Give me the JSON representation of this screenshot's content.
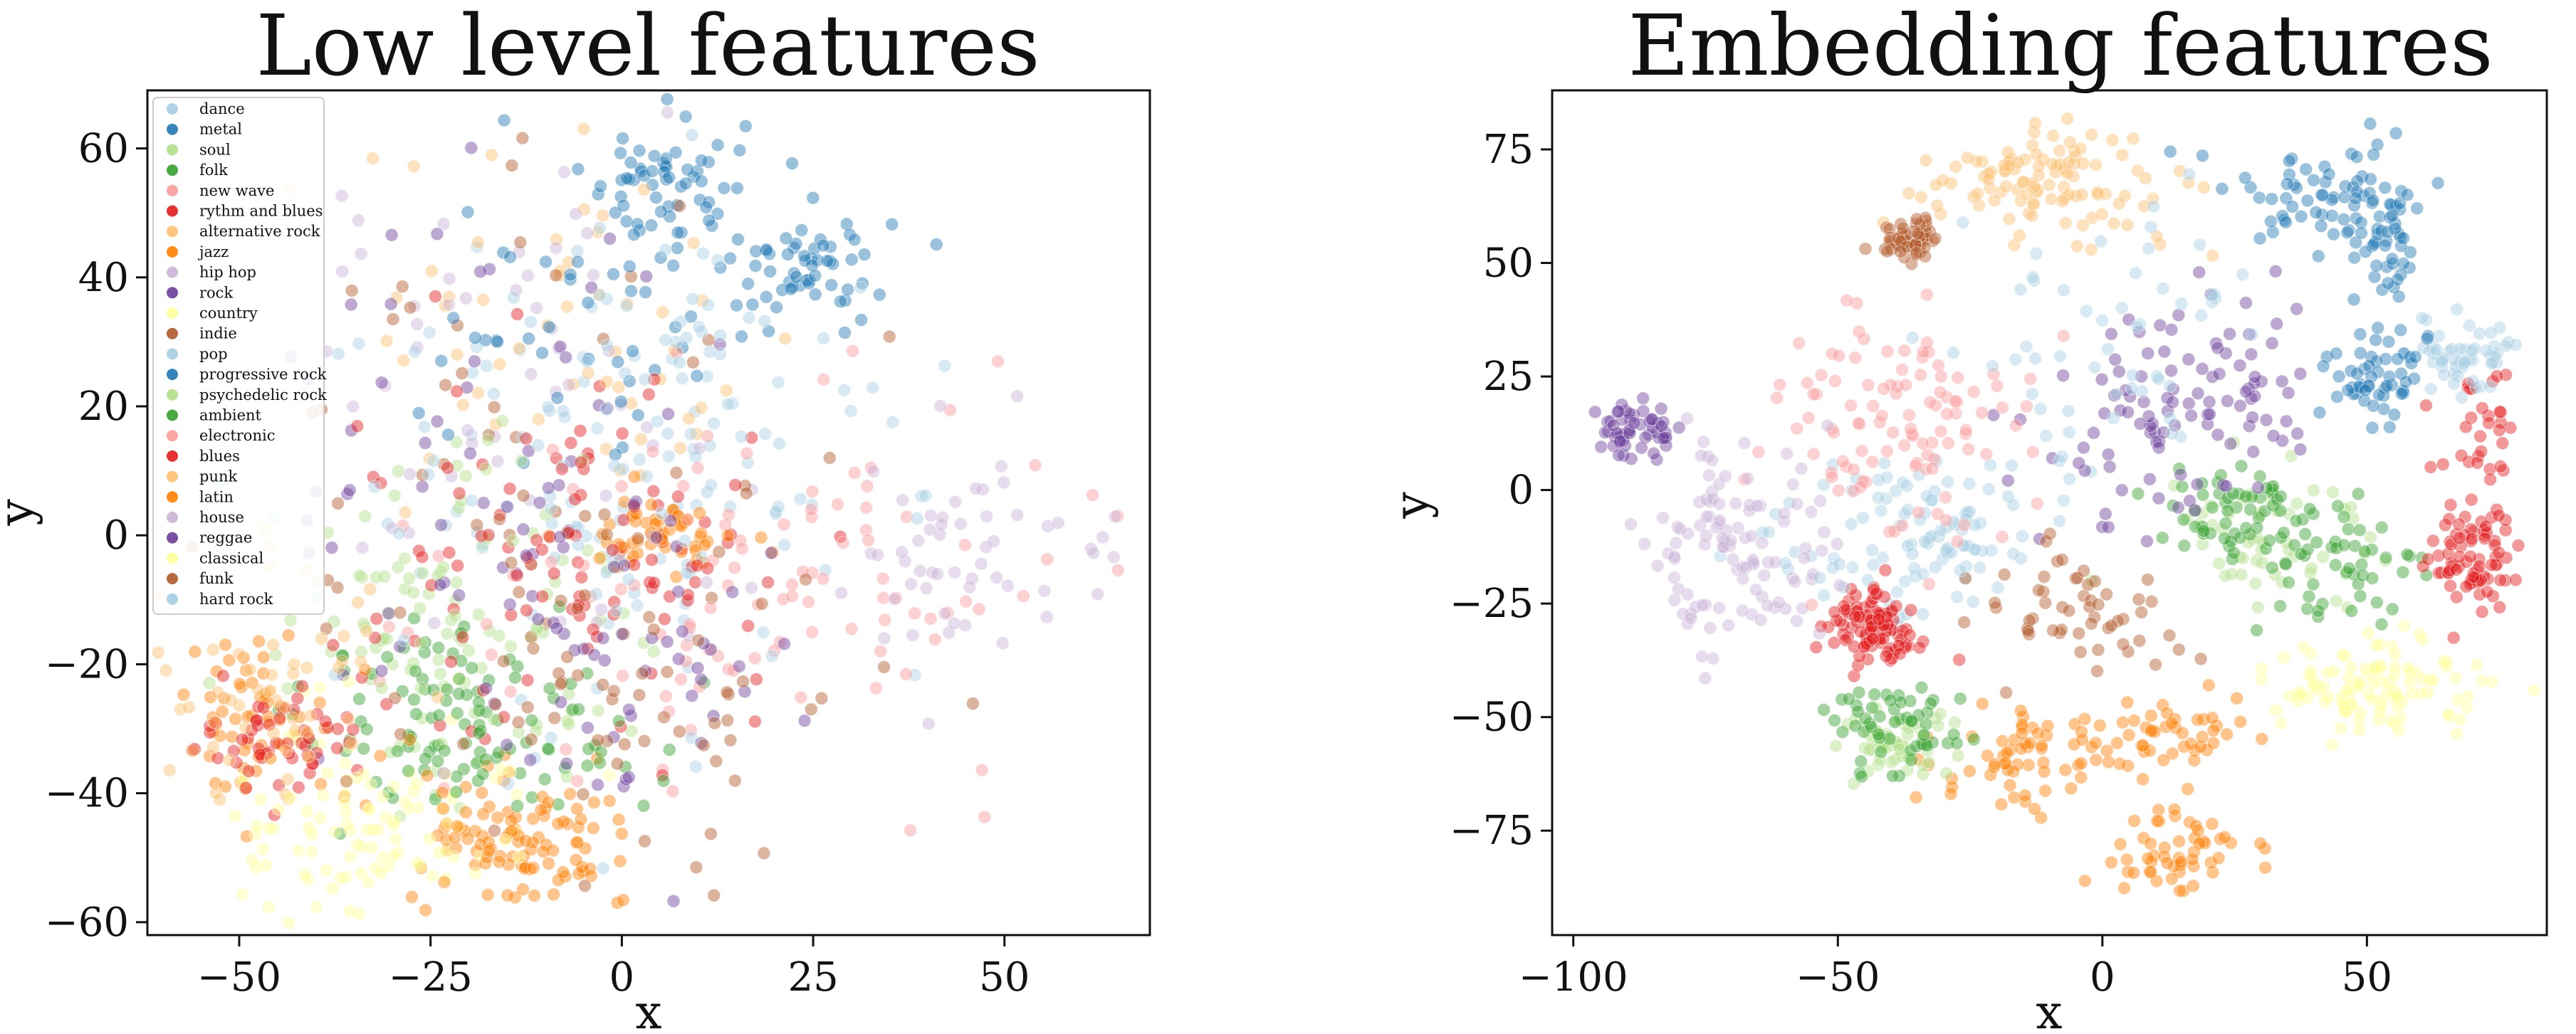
{
  "chart_data": [
    {
      "type": "scatter",
      "title": "Low level features",
      "xlabel": "x",
      "ylabel": "y",
      "xlim": [
        -62,
        69
      ],
      "ylim": [
        -62,
        69
      ],
      "xticks": [
        -50,
        -25,
        0,
        25,
        50
      ],
      "yticks": [
        -60,
        -40,
        -20,
        0,
        20,
        40,
        60
      ],
      "grid": false,
      "legend_position": "upper-left",
      "series": [
        {
          "name": "dance",
          "color": "#a6cee3",
          "clusters": [
            {
              "cx": -10,
              "cy": 15,
              "sx": 20,
              "sy": 20
            }
          ]
        },
        {
          "name": "metal",
          "color": "#1f78b4",
          "clusters": [
            {
              "cx": 6,
              "cy": 55,
              "sx": 5,
              "sy": 5
            },
            {
              "cx": 25,
              "cy": 42,
              "sx": 5,
              "sy": 4
            }
          ]
        },
        {
          "name": "soul",
          "color": "#b2df8a",
          "clusters": [
            {
              "cx": -20,
              "cy": -18,
              "sx": 12,
              "sy": 12
            }
          ]
        },
        {
          "name": "folk",
          "color": "#33a02c",
          "clusters": [
            {
              "cx": -25,
              "cy": -28,
              "sx": 8,
              "sy": 8
            }
          ]
        },
        {
          "name": "new wave",
          "color": "#fb9a99",
          "clusters": [
            {
              "cx": 20,
              "cy": -10,
              "sx": 20,
              "sy": 15
            }
          ]
        },
        {
          "name": "rythm and blues",
          "color": "#e31a1c",
          "clusters": [
            {
              "cx": -5,
              "cy": -5,
              "sx": 18,
              "sy": 15
            }
          ]
        },
        {
          "name": "alternative rock",
          "color": "#fdbf6f",
          "clusters": [
            {
              "cx": -5,
              "cy": 30,
              "sx": 15,
              "sy": 15
            }
          ]
        },
        {
          "name": "jazz",
          "color": "#ff7f00",
          "clusters": [
            {
              "cx": -15,
              "cy": -45,
              "sx": 9,
              "sy": 6
            },
            {
              "cx": 5,
              "cy": 0,
              "sx": 5,
              "sy": 3
            },
            {
              "cx": -48,
              "cy": -27,
              "sx": 5,
              "sy": 6
            }
          ]
        },
        {
          "name": "hip hop",
          "color": "#cab2d6",
          "clusters": [
            {
              "cx": -15,
              "cy": 20,
              "sx": 15,
              "sy": 18
            }
          ]
        },
        {
          "name": "rock",
          "color": "#6a3d9a",
          "clusters": [
            {
              "cx": -18,
              "cy": 15,
              "sx": 14,
              "sy": 20
            }
          ]
        },
        {
          "name": "country",
          "color": "#ffff99",
          "clusters": [
            {
              "cx": -30,
              "cy": -40,
              "sx": 10,
              "sy": 10
            }
          ]
        },
        {
          "name": "indie",
          "color": "#b15928",
          "clusters": [
            {
              "cx": -10,
              "cy": 10,
              "sx": 20,
              "sy": 20
            }
          ]
        },
        {
          "name": "pop",
          "color": "#a6cee3",
          "clusters": [
            {
              "cx": 0,
              "cy": 0,
              "sx": 25,
              "sy": 22
            }
          ]
        },
        {
          "name": "progressive rock",
          "color": "#1f78b4",
          "clusters": [
            {
              "cx": 0,
              "cy": 35,
              "sx": 12,
              "sy": 12
            }
          ]
        },
        {
          "name": "psychedelic rock",
          "color": "#b2df8a",
          "clusters": [
            {
              "cx": -25,
              "cy": -10,
              "sx": 10,
              "sy": 12
            }
          ]
        },
        {
          "name": "ambient",
          "color": "#33a02c",
          "clusters": [
            {
              "cx": -15,
              "cy": -30,
              "sx": 10,
              "sy": 8
            }
          ]
        },
        {
          "name": "electronic",
          "color": "#fb9a99",
          "clusters": [
            {
              "cx": 25,
              "cy": -5,
              "sx": 22,
              "sy": 15
            }
          ]
        },
        {
          "name": "blues",
          "color": "#e31a1c",
          "clusters": [
            {
              "cx": -45,
              "cy": -32,
              "sx": 5,
              "sy": 5
            },
            {
              "cx": -8,
              "cy": 0,
              "sx": 12,
              "sy": 10
            }
          ]
        },
        {
          "name": "punk",
          "color": "#fdbf6f",
          "clusters": [
            {
              "cx": -45,
              "cy": -25,
              "sx": 8,
              "sy": 10
            }
          ]
        },
        {
          "name": "latin",
          "color": "#ff7f00",
          "clusters": [
            {
              "cx": -12,
              "cy": -48,
              "sx": 8,
              "sy": 5
            }
          ]
        },
        {
          "name": "house",
          "color": "#cab2d6",
          "clusters": [
            {
              "cx": 45,
              "cy": -5,
              "sx": 10,
              "sy": 8
            }
          ]
        },
        {
          "name": "reggae",
          "color": "#6a3d9a",
          "clusters": [
            {
              "cx": 0,
              "cy": -20,
              "sx": 12,
              "sy": 12
            }
          ]
        },
        {
          "name": "classical",
          "color": "#ffff99",
          "clusters": [
            {
              "cx": -35,
              "cy": -45,
              "sx": 8,
              "sy": 6
            }
          ]
        },
        {
          "name": "funk",
          "color": "#b15928",
          "clusters": [
            {
              "cx": 0,
              "cy": -30,
              "sx": 15,
              "sy": 10
            }
          ]
        },
        {
          "name": "hard rock",
          "color": "#a6cee3",
          "clusters": [
            {
              "cx": 5,
              "cy": 20,
              "sx": 15,
              "sy": 15
            }
          ]
        }
      ]
    },
    {
      "type": "scatter",
      "title": "Embedding features",
      "xlabel": "x",
      "ylabel": "y",
      "xlim": [
        -104,
        84
      ],
      "ylim": [
        -98,
        88
      ],
      "xticks": [
        -100,
        -50,
        0,
        50
      ],
      "yticks": [
        -75,
        -50,
        -25,
        0,
        25,
        50,
        75
      ],
      "grid": false,
      "series": [
        {
          "name": "dance",
          "color": "#a6cee3",
          "clusters": [
            {
              "cx": -40,
              "cy": -10,
              "sx": 12,
              "sy": 10
            }
          ]
        },
        {
          "name": "metal",
          "color": "#1f78b4",
          "clusters": [
            {
              "cx": 40,
              "cy": 65,
              "sx": 10,
              "sy": 6
            },
            {
              "cx": 53,
              "cy": 55,
              "sx": 4,
              "sy": 10
            }
          ]
        },
        {
          "name": "soul",
          "color": "#b2df8a",
          "clusters": [
            {
              "cx": 30,
              "cy": -10,
              "sx": 10,
              "sy": 10
            }
          ]
        },
        {
          "name": "folk",
          "color": "#33a02c",
          "clusters": [
            {
              "cx": 45,
              "cy": -18,
              "sx": 8,
              "sy": 8
            },
            {
              "cx": 25,
              "cy": -5,
              "sx": 8,
              "sy": 6
            }
          ]
        },
        {
          "name": "new wave",
          "color": "#fb9a99",
          "clusters": [
            {
              "cx": -45,
              "cy": 20,
              "sx": 12,
              "sy": 10
            }
          ]
        },
        {
          "name": "rythm and blues",
          "color": "#e31a1c",
          "clusters": [
            {
              "cx": 72,
              "cy": 0,
              "sx": 4,
              "sy": 14
            },
            {
              "cx": -45,
              "cy": -28,
              "sx": 4,
              "sy": 4
            }
          ]
        },
        {
          "name": "alternative rock",
          "color": "#fdbf6f",
          "clusters": [
            {
              "cx": -5,
              "cy": 65,
              "sx": 12,
              "sy": 6
            }
          ]
        },
        {
          "name": "jazz",
          "color": "#ff7f00",
          "clusters": [
            {
              "cx": 12,
              "cy": -80,
              "sx": 8,
              "sy": 5
            },
            {
              "cx": -15,
              "cy": -60,
              "sx": 8,
              "sy": 6
            }
          ]
        },
        {
          "name": "hip hop",
          "color": "#cab2d6",
          "clusters": [
            {
              "cx": -68,
              "cy": -15,
              "sx": 8,
              "sy": 12
            }
          ]
        },
        {
          "name": "rock",
          "color": "#6a3d9a",
          "clusters": [
            {
              "cx": 10,
              "cy": 15,
              "sx": 12,
              "sy": 12
            }
          ]
        },
        {
          "name": "country",
          "color": "#ffff99",
          "clusters": [
            {
              "cx": 50,
              "cy": -42,
              "sx": 10,
              "sy": 5
            }
          ]
        },
        {
          "name": "indie",
          "color": "#b15928",
          "clusters": [
            {
              "cx": -5,
              "cy": -25,
              "sx": 10,
              "sy": 8
            }
          ]
        },
        {
          "name": "pop",
          "color": "#a6cee3",
          "clusters": [
            {
              "cx": 70,
              "cy": 30,
              "sx": 5,
              "sy": 4
            },
            {
              "cx": -30,
              "cy": -10,
              "sx": 10,
              "sy": 8
            }
          ]
        },
        {
          "name": "progressive rock",
          "color": "#1f78b4",
          "clusters": [
            {
              "cx": 52,
              "cy": 25,
              "sx": 5,
              "sy": 5
            }
          ]
        },
        {
          "name": "psychedelic rock",
          "color": "#b2df8a",
          "clusters": [
            {
              "cx": -40,
              "cy": -55,
              "sx": 5,
              "sy": 5
            }
          ]
        },
        {
          "name": "ambient",
          "color": "#33a02c",
          "clusters": [
            {
              "cx": -40,
              "cy": -52,
              "sx": 6,
              "sy": 6
            }
          ]
        },
        {
          "name": "electronic",
          "color": "#fb9a99",
          "clusters": [
            {
              "cx": -35,
              "cy": 10,
              "sx": 12,
              "sy": 12
            }
          ]
        },
        {
          "name": "blues",
          "color": "#e31a1c",
          "clusters": [
            {
              "cx": 70,
              "cy": -15,
              "sx": 4,
              "sy": 5
            },
            {
              "cx": -42,
              "cy": -32,
              "sx": 4,
              "sy": 4
            }
          ]
        },
        {
          "name": "punk",
          "color": "#fdbf6f",
          "clusters": [
            {
              "cx": -15,
              "cy": 70,
              "sx": 8,
              "sy": 5
            }
          ]
        },
        {
          "name": "latin",
          "color": "#ff7f00",
          "clusters": [
            {
              "cx": 10,
              "cy": -55,
              "sx": 8,
              "sy": 4
            }
          ]
        },
        {
          "name": "house",
          "color": "#cab2d6",
          "clusters": [
            {
              "cx": -70,
              "cy": -12,
              "sx": 9,
              "sy": 12
            }
          ]
        },
        {
          "name": "reggae",
          "color": "#6a3d9a",
          "clusters": [
            {
              "cx": -88,
              "cy": 13,
              "sx": 4,
              "sy": 3
            },
            {
              "cx": 20,
              "cy": 25,
              "sx": 10,
              "sy": 10
            }
          ]
        },
        {
          "name": "classical",
          "color": "#ffff99",
          "clusters": [
            {
              "cx": 50,
              "cy": -45,
              "sx": 8,
              "sy": 4
            }
          ]
        },
        {
          "name": "funk",
          "color": "#b15928",
          "clusters": [
            {
              "cx": -36,
              "cy": 55,
              "sx": 3,
              "sy": 2
            }
          ]
        },
        {
          "name": "hard rock",
          "color": "#a6cee3",
          "clusters": [
            {
              "cx": 0,
              "cy": 30,
              "sx": 15,
              "sy": 15
            }
          ]
        }
      ]
    }
  ]
}
